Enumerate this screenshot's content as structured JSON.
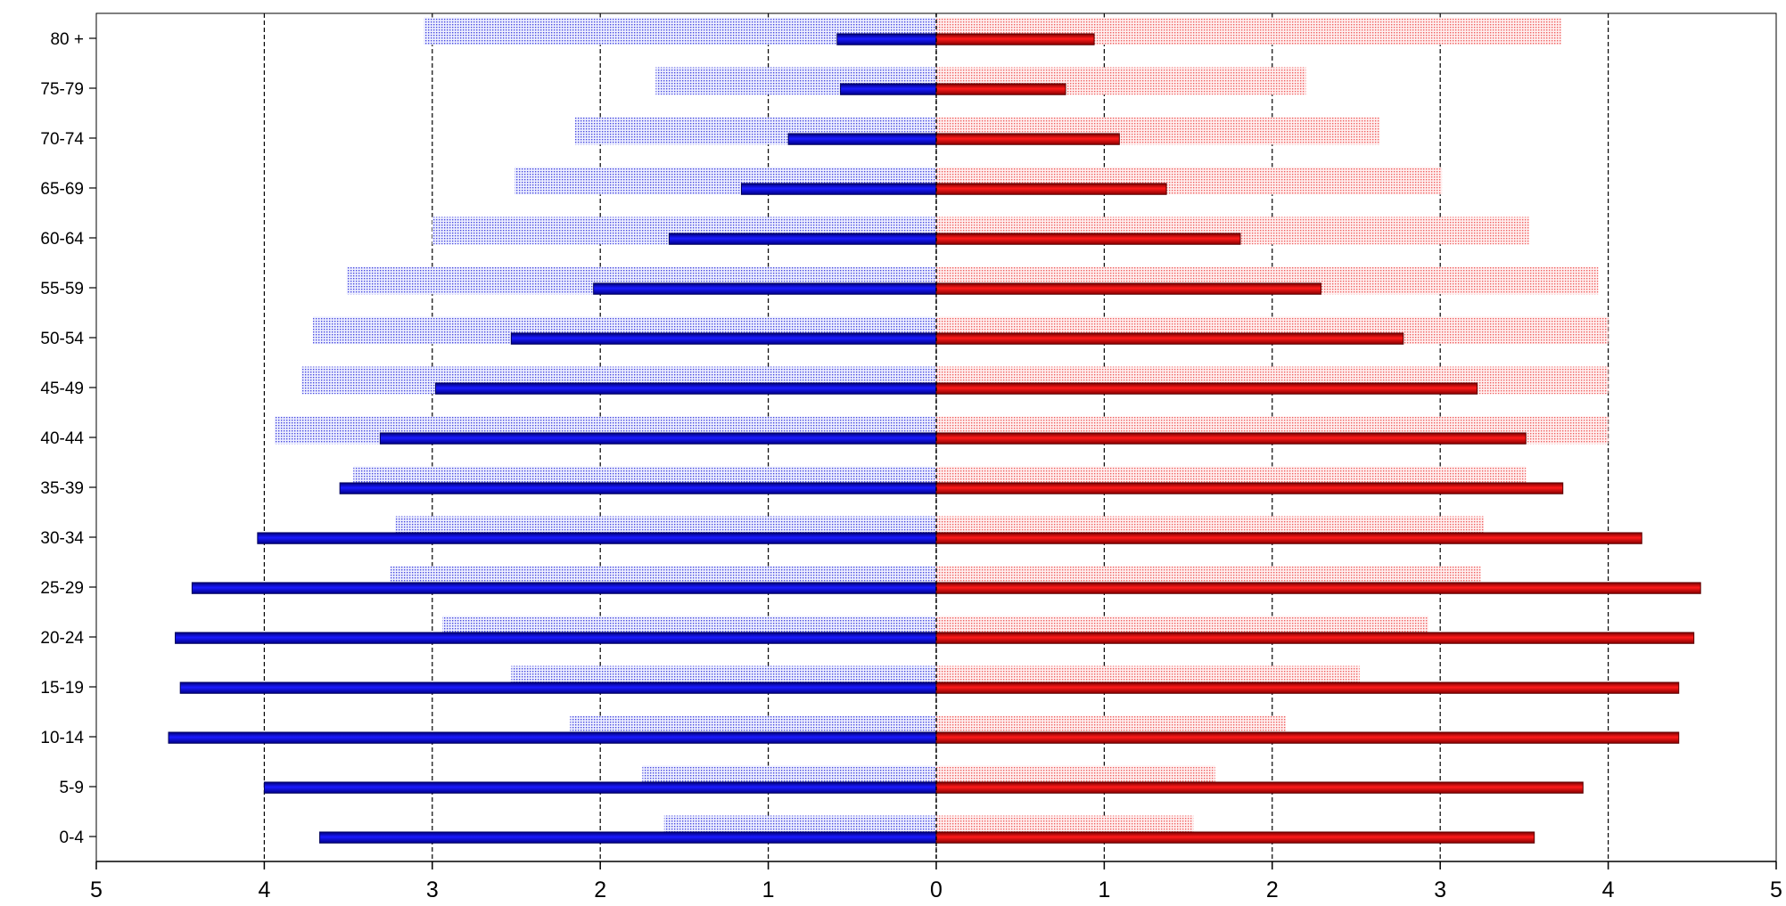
{
  "chart_data": {
    "type": "bar",
    "orientation": "horizontal",
    "title": "",
    "xlabel": "",
    "ylabel": "",
    "xlim": [
      -5,
      5
    ],
    "x_ticks": [
      -5,
      -4,
      -3,
      -2,
      -1,
      0,
      1,
      2,
      3,
      4,
      5
    ],
    "x_tick_labels": [
      "5",
      "4",
      "3",
      "2",
      "1",
      "0",
      "1",
      "2",
      "3",
      "4",
      "5"
    ],
    "grid": "vertical-dashed",
    "legend": "none",
    "categories": [
      "0-4",
      "5-9",
      "10-14",
      "15-19",
      "20-24",
      "25-29",
      "30-34",
      "35-39",
      "40-44",
      "45-49",
      "50-54",
      "55-59",
      "60-64",
      "65-69",
      "70-74",
      "75-79",
      "80 +"
    ],
    "series": [
      {
        "side": "left",
        "style": "dotted-background",
        "color": "#3333dd",
        "values": [
          1.62,
          1.75,
          2.18,
          2.53,
          2.94,
          3.25,
          3.22,
          3.47,
          3.94,
          3.78,
          3.71,
          3.51,
          3.0,
          2.51,
          2.15,
          1.67,
          3.05
        ]
      },
      {
        "side": "left",
        "style": "solid",
        "color": "#0000cc",
        "values": [
          3.67,
          4.0,
          4.57,
          4.5,
          4.53,
          4.43,
          4.04,
          3.55,
          3.31,
          2.98,
          2.53,
          2.04,
          1.59,
          1.16,
          0.88,
          0.57,
          0.59
        ]
      },
      {
        "side": "right",
        "style": "dotted-background",
        "color": "#ee3333",
        "values": [
          1.53,
          1.66,
          2.08,
          2.52,
          2.93,
          3.24,
          3.26,
          3.51,
          4.0,
          4.0,
          4.0,
          3.94,
          3.53,
          3.01,
          2.64,
          2.2,
          3.72
        ]
      },
      {
        "side": "right",
        "style": "solid",
        "color": "#dd0000",
        "values": [
          3.56,
          3.85,
          4.42,
          4.42,
          4.51,
          4.55,
          4.2,
          3.73,
          3.51,
          3.22,
          2.78,
          2.29,
          1.81,
          1.37,
          1.09,
          0.77,
          0.94
        ]
      }
    ]
  }
}
